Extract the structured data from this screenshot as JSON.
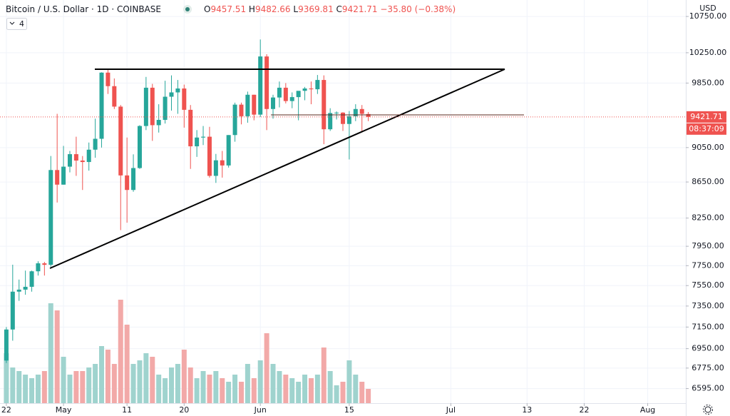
{
  "chart_data": {
    "type": "candlestick",
    "title": "Bitcoin / U.S. Dollar",
    "interval": "1D",
    "exchange": "COINBASE",
    "ohlc_labels": [
      "O",
      "H",
      "L",
      "C"
    ],
    "change_text": "−35.80 (−0.38%)",
    "indicator_count": 4,
    "currency": "USD",
    "countdown": "08:37:09",
    "log_scale": true,
    "grid": true,
    "colors": {
      "up": "#26a69a",
      "down": "#ef5350",
      "up_volume": "#9fd3ce",
      "down_volume": "#f2a9a8"
    },
    "x": [
      "Apr 22",
      "Apr 23",
      "Apr 24",
      "Apr 25",
      "Apr 26",
      "Apr 27",
      "Apr 28",
      "Apr 29",
      "Apr 30",
      "May 1",
      "May 2",
      "May 3",
      "May 4",
      "May 5",
      "May 6",
      "May 7",
      "May 8",
      "May 9",
      "May 10",
      "May 11",
      "May 12",
      "May 13",
      "May 14",
      "May 15",
      "May 16",
      "May 17",
      "May 18",
      "May 19",
      "May 20",
      "May 21",
      "May 22",
      "May 23",
      "May 24",
      "May 25",
      "May 26",
      "May 27",
      "May 28",
      "May 29",
      "May 30",
      "May 31",
      "Jun 1",
      "Jun 2",
      "Jun 3",
      "Jun 4",
      "Jun 5",
      "Jun 6",
      "Jun 7",
      "Jun 8",
      "Jun 9",
      "Jun 10",
      "Jun 11",
      "Jun 12",
      "Jun 13",
      "Jun 14",
      "Jun 15",
      "Jun 16",
      "Jun 17",
      "Jun 18"
    ],
    "open": [
      6842,
      7127,
      7490,
      7510,
      7538,
      7693,
      7774,
      7759,
      8787,
      8620,
      8826,
      8972,
      8897,
      8880,
      9025,
      9155,
      9986,
      9810,
      9550,
      8725,
      8560,
      8810,
      9310,
      9790,
      9320,
      9385,
      9675,
      9730,
      9780,
      9510,
      9065,
      9170,
      9180,
      8720,
      8900,
      8840,
      9200,
      9575,
      9430,
      9700,
      9450,
      10200,
      9520,
      9665,
      9790,
      9620,
      9670,
      9750,
      9780,
      9770,
      9890,
      9270,
      9470,
      9475,
      9335,
      9430,
      9520,
      9457.51
    ],
    "high": [
      7150,
      7760,
      7610,
      7700,
      7700,
      7795,
      7789,
      8950,
      9460,
      9070,
      9010,
      9180,
      8950,
      9110,
      9400,
      9990,
      10040,
      9910,
      9570,
      9170,
      8970,
      9320,
      9930,
      9840,
      9580,
      9880,
      9950,
      9890,
      9830,
      9570,
      9260,
      9310,
      9300,
      8975,
      9010,
      9200,
      9600,
      9600,
      9740,
      9700,
      10430,
      10230,
      9700,
      9870,
      9850,
      9730,
      9710,
      9800,
      9870,
      9955,
      9950,
      9530,
      9490,
      9480,
      9495,
      9580,
      9570,
      9482.66
    ],
    "low": [
      6820,
      7023,
      7400,
      7460,
      7490,
      7650,
      7650,
      7740,
      8420,
      8620,
      8760,
      8720,
      8560,
      8780,
      8930,
      9050,
      9710,
      9520,
      8120,
      8200,
      8540,
      8800,
      9260,
      9130,
      9230,
      9340,
      9500,
      9460,
      9290,
      8800,
      8940,
      9080,
      8700,
      8640,
      8700,
      8815,
      9120,
      9330,
      9350,
      9380,
      9420,
      9260,
      9400,
      9540,
      9590,
      9530,
      9380,
      9630,
      9580,
      9710,
      9090,
      9250,
      9390,
      9250,
      8910,
      9370,
      9240,
      9369.81
    ],
    "close": [
      7127,
      7490,
      7510,
      7538,
      7693,
      7774,
      7759,
      8787,
      8620,
      8826,
      8972,
      8897,
      8880,
      9025,
      9155,
      9986,
      9810,
      9550,
      8725,
      8560,
      8810,
      9310,
      9790,
      9320,
      9385,
      9675,
      9730,
      9780,
      9510,
      9065,
      9170,
      9180,
      8720,
      8900,
      8840,
      9200,
      9575,
      9430,
      9700,
      9450,
      10200,
      9520,
      9665,
      9790,
      9620,
      9670,
      9750,
      9780,
      9770,
      9890,
      9270,
      9470,
      9475,
      9335,
      9430,
      9520,
      9460,
      9421.71
    ],
    "volume": [
      10500,
      7500,
      6750,
      6000,
      5250,
      6000,
      6750,
      21000,
      19500,
      9750,
      6000,
      6750,
      6750,
      7500,
      8250,
      12000,
      11250,
      8250,
      21750,
      16500,
      8250,
      9000,
      10500,
      9750,
      6000,
      5250,
      7500,
      8250,
      11250,
      7500,
      5250,
      6750,
      6000,
      6750,
      5250,
      4500,
      6000,
      4500,
      8250,
      5250,
      9000,
      14700,
      8250,
      6750,
      6000,
      5250,
      4500,
      6000,
      5250,
      6000,
      11700,
      6750,
      3750,
      4500,
      9000,
      6000,
      4500,
      3000
    ],
    "volume_lim": [
      0,
      30000
    ],
    "ylim": [
      6470,
      10985
    ],
    "yticks": [
      {
        "value": 6595,
        "label": "6595.00"
      },
      {
        "value": 6775,
        "label": "6775.00"
      },
      {
        "value": 6950,
        "label": "6950.00"
      },
      {
        "value": 7150,
        "label": "7150.00"
      },
      {
        "value": 7350,
        "label": "7350.00"
      },
      {
        "value": 7550,
        "label": "7550.00"
      },
      {
        "value": 7750,
        "label": "7750.00"
      },
      {
        "value": 7950,
        "label": "7950.00"
      },
      {
        "value": 8250,
        "label": "8250.00"
      },
      {
        "value": 8650,
        "label": "8650.00"
      },
      {
        "value": 9050,
        "label": "9050.00"
      },
      {
        "value": 9850,
        "label": "9850.00"
      },
      {
        "value": 10250,
        "label": "10250.00"
      },
      {
        "value": 10750,
        "label": "10750.00"
      }
    ],
    "xlim": [
      "Apr 21",
      "Aug 7"
    ],
    "xticks": [
      {
        "value": "Apr 22",
        "label": "22"
      },
      {
        "value": "May 1",
        "label": "May"
      },
      {
        "value": "May 11",
        "label": "11"
      },
      {
        "value": "May 20",
        "label": "20"
      },
      {
        "value": "Jun 1",
        "label": "Jun"
      },
      {
        "value": "Jun 15",
        "label": "15"
      },
      {
        "value": "Jul 1",
        "label": "Jul"
      },
      {
        "value": "Jul 13",
        "label": "13"
      },
      {
        "value": "Jul 22",
        "label": "22"
      },
      {
        "value": "Aug 1",
        "label": "Aug"
      }
    ]
  }
}
